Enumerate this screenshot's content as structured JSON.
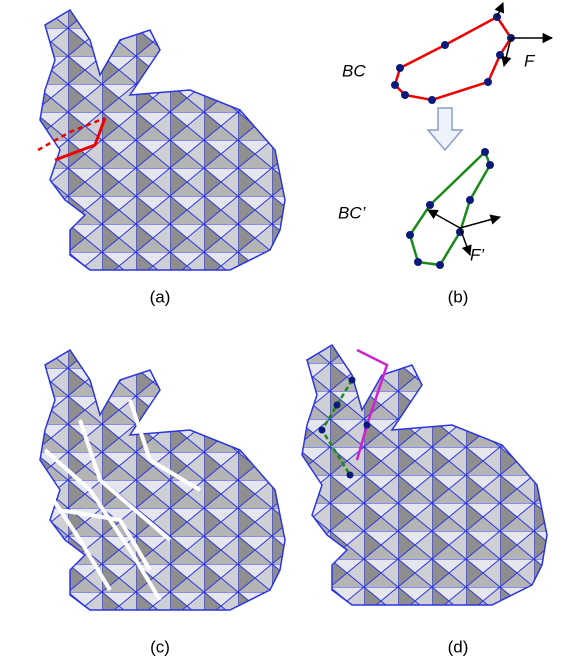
{
  "panels": [
    {
      "caption": "(a)"
    },
    {
      "caption": "(b)"
    },
    {
      "caption": "(c)"
    },
    {
      "caption": "(d)"
    }
  ],
  "diagram": {
    "top_curve_label": "BC",
    "top_frame_label": "F",
    "bottom_curve_label": "BC’",
    "bottom_frame_label": "F’"
  }
}
